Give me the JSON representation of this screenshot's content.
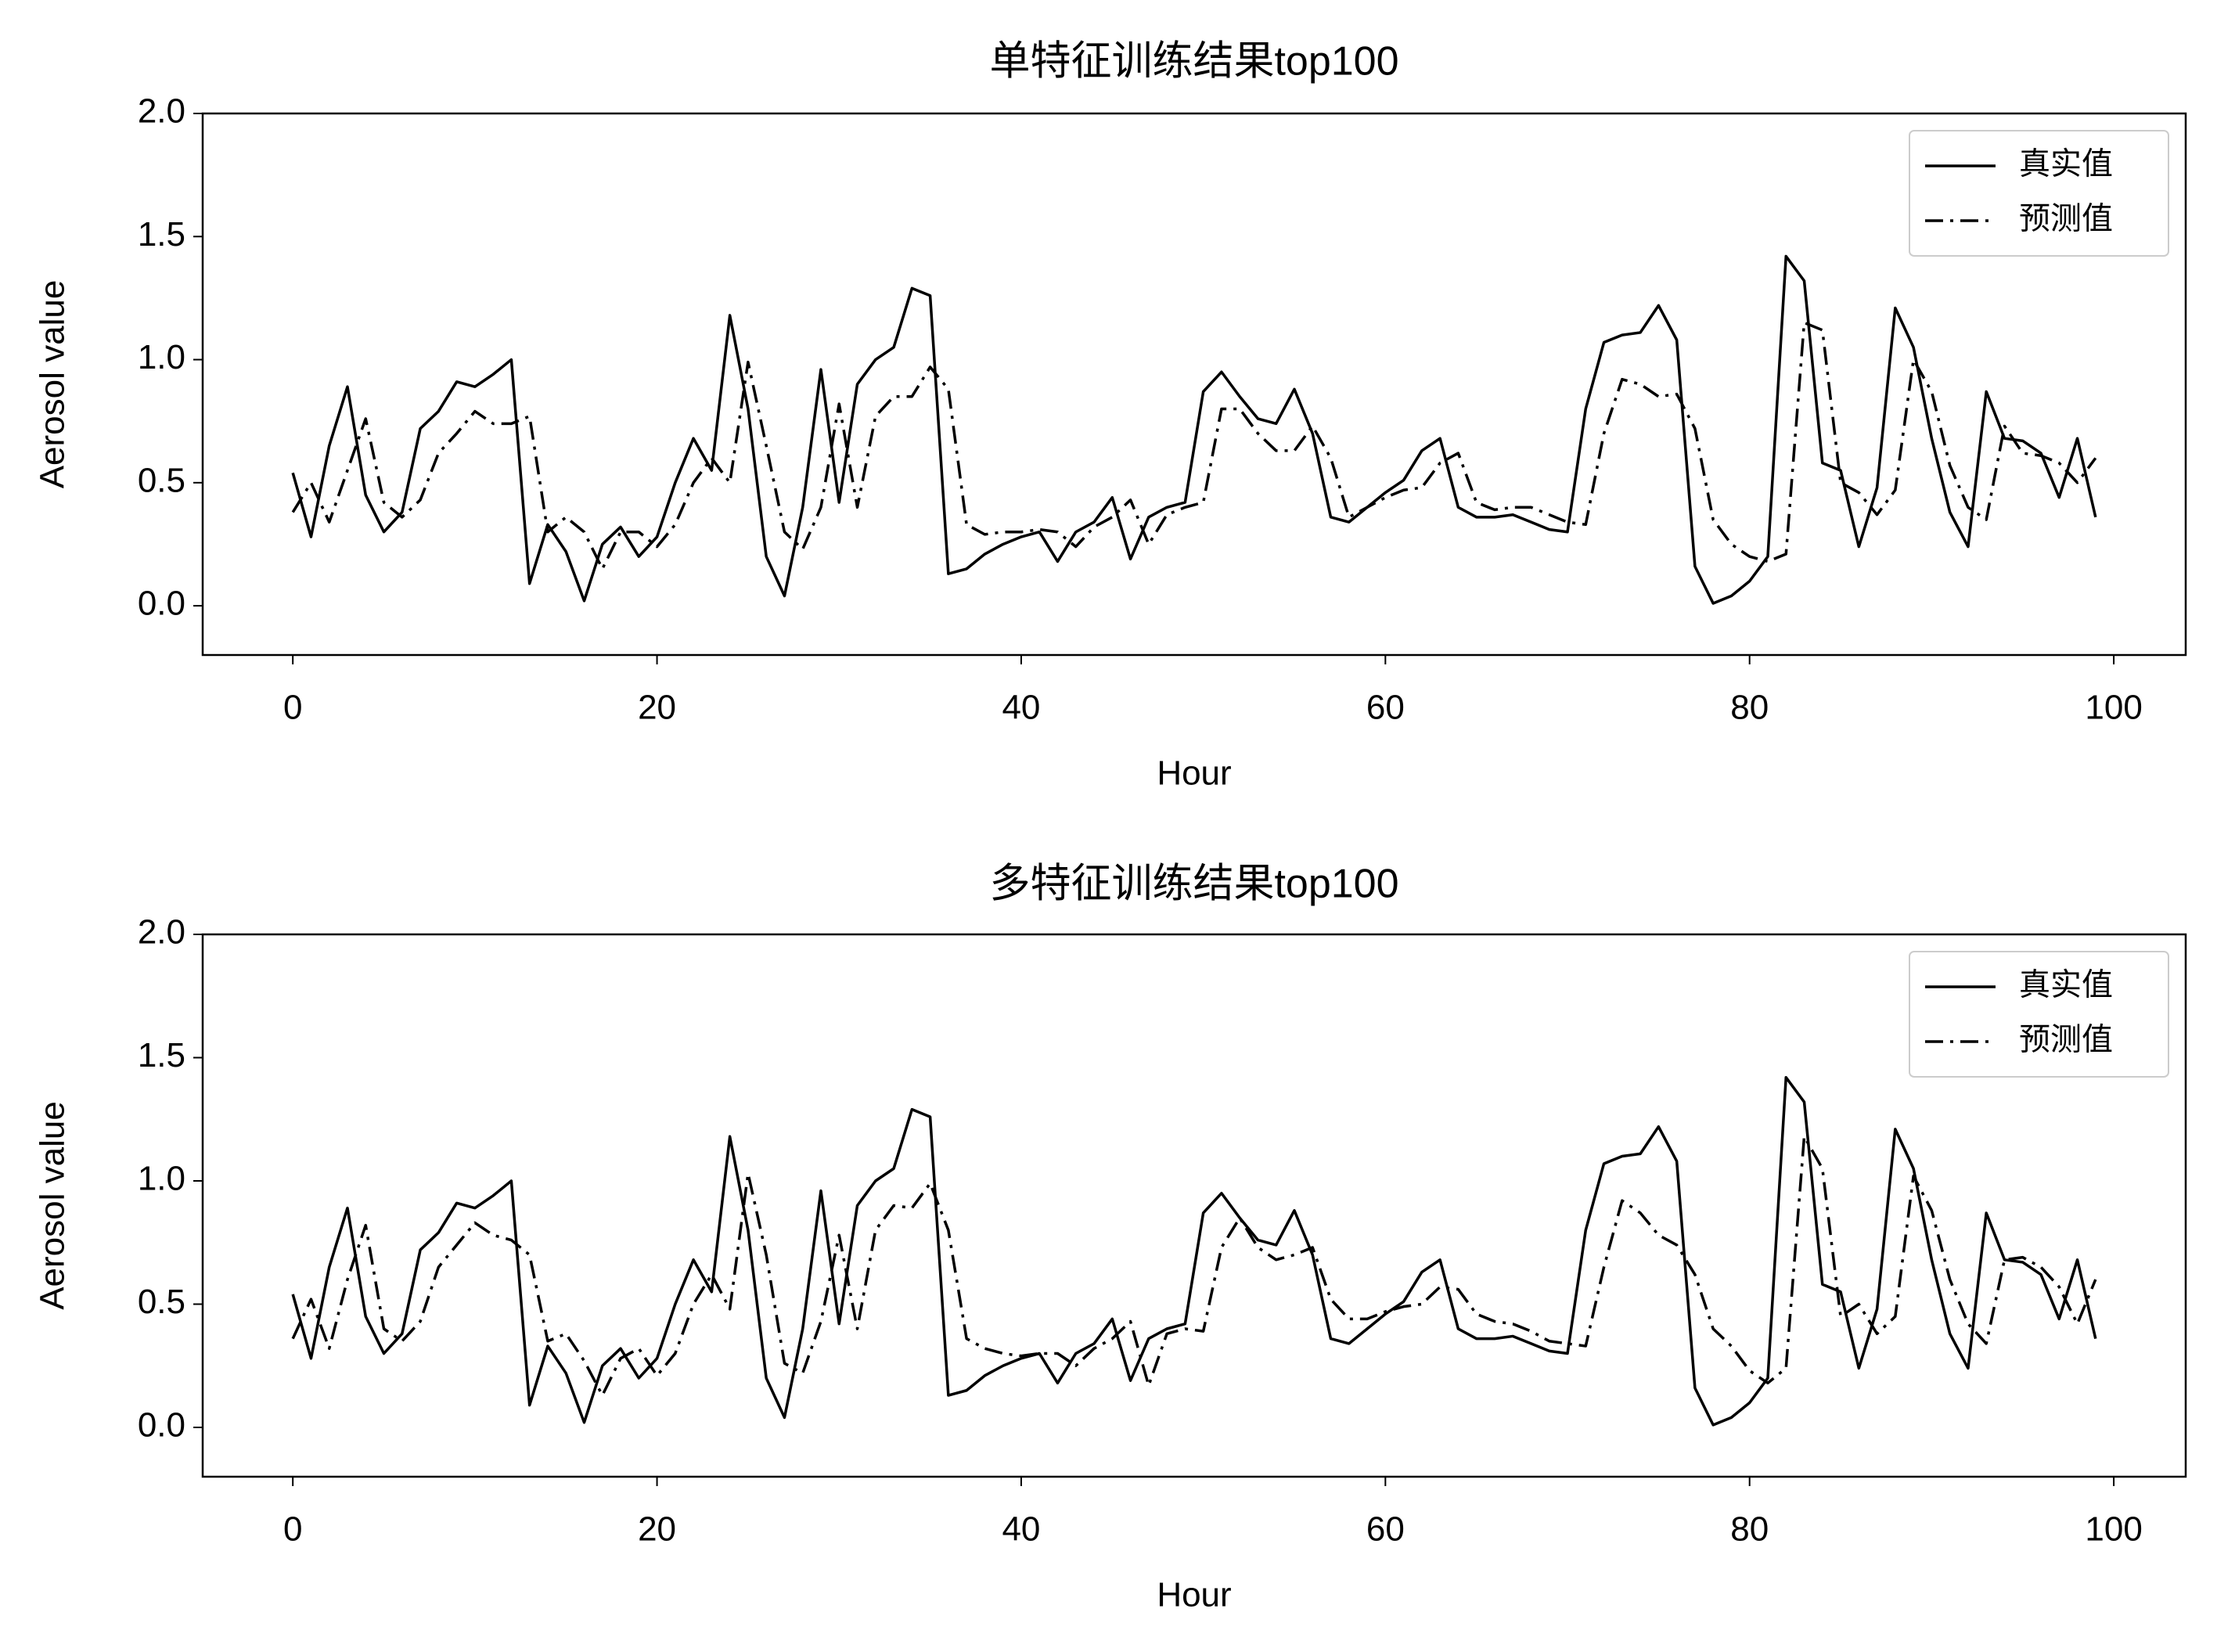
{
  "chart_data": [
    {
      "type": "line",
      "title": "单特征训练结果top100",
      "xlabel": "Hour",
      "ylabel": "Aerosol value",
      "x": [
        0,
        1,
        2,
        3,
        4,
        5,
        6,
        7,
        8,
        9,
        10,
        11,
        12,
        13,
        14,
        15,
        16,
        17,
        18,
        19,
        20,
        21,
        22,
        23,
        24,
        25,
        26,
        27,
        28,
        29,
        30,
        31,
        32,
        33,
        34,
        35,
        36,
        37,
        38,
        39,
        40,
        41,
        42,
        43,
        44,
        45,
        46,
        47,
        48,
        49,
        50,
        51,
        52,
        53,
        54,
        55,
        56,
        57,
        58,
        59,
        60,
        61,
        62,
        63,
        64,
        65,
        66,
        67,
        68,
        69,
        70,
        71,
        72,
        73,
        74,
        75,
        76,
        77,
        78,
        79,
        80,
        81,
        82,
        83,
        84,
        85,
        86,
        87,
        88,
        89,
        90,
        91,
        92,
        93,
        94,
        95,
        96,
        97,
        98,
        99
      ],
      "series": [
        {
          "name": "真实值",
          "color": "#000000",
          "linestyle": "solid",
          "values": [
            0.54,
            0.28,
            0.65,
            0.89,
            0.45,
            0.3,
            0.38,
            0.72,
            0.79,
            0.91,
            0.89,
            0.94,
            1.0,
            0.09,
            0.33,
            0.22,
            0.02,
            0.25,
            0.32,
            0.2,
            0.28,
            0.5,
            0.68,
            0.55,
            1.18,
            0.8,
            0.2,
            0.04,
            0.4,
            0.96,
            0.42,
            0.9,
            1.0,
            1.05,
            1.29,
            1.26,
            0.13,
            0.15,
            0.21,
            0.25,
            0.28,
            0.3,
            0.18,
            0.3,
            0.34,
            0.44,
            0.19,
            0.36,
            0.4,
            0.42,
            0.87,
            0.95,
            0.85,
            0.76,
            0.74,
            0.88,
            0.7,
            0.36,
            0.34,
            0.4,
            0.46,
            0.51,
            0.63,
            0.68,
            0.4,
            0.36,
            0.36,
            0.37,
            0.34,
            0.31,
            0.3,
            0.8,
            1.07,
            1.1,
            1.11,
            1.22,
            1.08,
            0.16,
            0.01,
            0.04,
            0.1,
            0.2,
            1.42,
            1.32,
            0.58,
            0.55,
            0.24,
            0.48,
            1.21,
            1.05,
            0.68,
            0.38,
            0.24,
            0.87,
            0.68,
            0.67,
            0.62,
            0.44,
            0.68,
            0.36
          ]
        },
        {
          "name": "预测值",
          "color": "#000000",
          "linestyle": "dashdot",
          "values": [
            0.38,
            0.5,
            0.34,
            0.55,
            0.76,
            0.42,
            0.36,
            0.43,
            0.62,
            0.7,
            0.79,
            0.74,
            0.74,
            0.77,
            0.3,
            0.36,
            0.3,
            0.15,
            0.3,
            0.3,
            0.24,
            0.33,
            0.5,
            0.6,
            0.5,
            0.99,
            0.65,
            0.3,
            0.23,
            0.4,
            0.82,
            0.4,
            0.77,
            0.85,
            0.85,
            0.97,
            0.88,
            0.33,
            0.29,
            0.3,
            0.3,
            0.31,
            0.3,
            0.24,
            0.32,
            0.36,
            0.43,
            0.25,
            0.37,
            0.4,
            0.42,
            0.8,
            0.8,
            0.7,
            0.63,
            0.63,
            0.73,
            0.6,
            0.36,
            0.4,
            0.44,
            0.47,
            0.48,
            0.58,
            0.62,
            0.42,
            0.39,
            0.4,
            0.4,
            0.37,
            0.34,
            0.33,
            0.7,
            0.92,
            0.9,
            0.85,
            0.86,
            0.72,
            0.35,
            0.25,
            0.2,
            0.18,
            0.21,
            1.15,
            1.12,
            0.5,
            0.46,
            0.37,
            0.47,
            1.0,
            0.87,
            0.57,
            0.4,
            0.35,
            0.73,
            0.62,
            0.61,
            0.58,
            0.5,
            0.6
          ]
        }
      ],
      "xlim": [
        -4.95,
        103.95
      ],
      "ylim": [
        -0.2,
        2.0
      ],
      "xticks": [
        0,
        20,
        40,
        60,
        80,
        100
      ],
      "yticks": [
        {
          "value": 0,
          "label": "0.0"
        },
        0.5,
        {
          "value": 1,
          "label": "1.0"
        },
        1.5,
        {
          "value": 2,
          "label": "2.0"
        }
      ],
      "legend": "upper right"
    },
    {
      "type": "line",
      "title": "多特征训练结果top100",
      "xlabel": "Hour",
      "ylabel": "Aerosol value",
      "x": [
        0,
        1,
        2,
        3,
        4,
        5,
        6,
        7,
        8,
        9,
        10,
        11,
        12,
        13,
        14,
        15,
        16,
        17,
        18,
        19,
        20,
        21,
        22,
        23,
        24,
        25,
        26,
        27,
        28,
        29,
        30,
        31,
        32,
        33,
        34,
        35,
        36,
        37,
        38,
        39,
        40,
        41,
        42,
        43,
        44,
        45,
        46,
        47,
        48,
        49,
        50,
        51,
        52,
        53,
        54,
        55,
        56,
        57,
        58,
        59,
        60,
        61,
        62,
        63,
        64,
        65,
        66,
        67,
        68,
        69,
        70,
        71,
        72,
        73,
        74,
        75,
        76,
        77,
        78,
        79,
        80,
        81,
        82,
        83,
        84,
        85,
        86,
        87,
        88,
        89,
        90,
        91,
        92,
        93,
        94,
        95,
        96,
        97,
        98,
        99
      ],
      "series": [
        {
          "name": "真实值",
          "color": "#000000",
          "linestyle": "solid",
          "values": [
            0.54,
            0.28,
            0.65,
            0.89,
            0.45,
            0.3,
            0.38,
            0.72,
            0.79,
            0.91,
            0.89,
            0.94,
            1.0,
            0.09,
            0.33,
            0.22,
            0.02,
            0.25,
            0.32,
            0.2,
            0.28,
            0.5,
            0.68,
            0.55,
            1.18,
            0.8,
            0.2,
            0.04,
            0.4,
            0.96,
            0.42,
            0.9,
            1.0,
            1.05,
            1.29,
            1.26,
            0.13,
            0.15,
            0.21,
            0.25,
            0.28,
            0.3,
            0.18,
            0.3,
            0.34,
            0.44,
            0.19,
            0.36,
            0.4,
            0.42,
            0.87,
            0.95,
            0.85,
            0.76,
            0.74,
            0.88,
            0.7,
            0.36,
            0.34,
            0.4,
            0.46,
            0.51,
            0.63,
            0.68,
            0.4,
            0.36,
            0.36,
            0.37,
            0.34,
            0.31,
            0.3,
            0.8,
            1.07,
            1.1,
            1.11,
            1.22,
            1.08,
            0.16,
            0.01,
            0.04,
            0.1,
            0.2,
            1.42,
            1.32,
            0.58,
            0.55,
            0.24,
            0.48,
            1.21,
            1.05,
            0.68,
            0.38,
            0.24,
            0.87,
            0.68,
            0.67,
            0.62,
            0.44,
            0.68,
            0.36
          ]
        },
        {
          "name": "预测值",
          "color": "#000000",
          "linestyle": "dashdot",
          "values": [
            0.36,
            0.52,
            0.32,
            0.6,
            0.82,
            0.4,
            0.35,
            0.43,
            0.65,
            0.74,
            0.83,
            0.78,
            0.76,
            0.7,
            0.35,
            0.38,
            0.27,
            0.13,
            0.28,
            0.32,
            0.21,
            0.3,
            0.5,
            0.62,
            0.48,
            1.03,
            0.7,
            0.26,
            0.22,
            0.43,
            0.78,
            0.4,
            0.8,
            0.9,
            0.89,
            0.99,
            0.8,
            0.36,
            0.32,
            0.3,
            0.29,
            0.3,
            0.3,
            0.25,
            0.32,
            0.36,
            0.43,
            0.17,
            0.38,
            0.4,
            0.39,
            0.73,
            0.85,
            0.73,
            0.68,
            0.7,
            0.73,
            0.52,
            0.44,
            0.44,
            0.47,
            0.49,
            0.5,
            0.57,
            0.56,
            0.46,
            0.43,
            0.42,
            0.39,
            0.35,
            0.34,
            0.33,
            0.65,
            0.92,
            0.87,
            0.78,
            0.74,
            0.62,
            0.4,
            0.33,
            0.23,
            0.18,
            0.24,
            1.18,
            1.05,
            0.45,
            0.5,
            0.38,
            0.45,
            1.02,
            0.88,
            0.6,
            0.42,
            0.34,
            0.68,
            0.69,
            0.65,
            0.57,
            0.42,
            0.6
          ]
        }
      ],
      "xlim": [
        -4.95,
        103.95
      ],
      "ylim": [
        -0.2,
        2.0
      ],
      "xticks": [
        0,
        20,
        40,
        60,
        80,
        100
      ],
      "yticks": [
        {
          "value": 0,
          "label": "0.0"
        },
        0.5,
        {
          "value": 1,
          "label": "1.0"
        },
        1.5,
        {
          "value": 2,
          "label": "2.0"
        }
      ],
      "legend": "upper right"
    }
  ]
}
